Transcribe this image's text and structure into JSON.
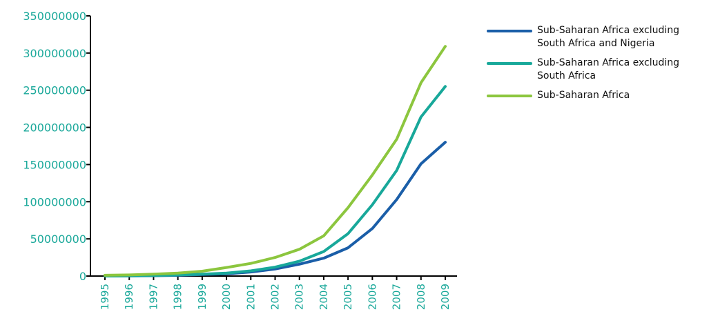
{
  "chart_data": {
    "type": "line",
    "title": "",
    "xlabel": "",
    "ylabel": "",
    "x": [
      "1995",
      "1996",
      "1997",
      "1998",
      "1999",
      "2000",
      "2001",
      "2002",
      "2003",
      "2004",
      "2005",
      "2006",
      "2007",
      "2008",
      "2009"
    ],
    "yticks": [
      "0",
      "50000000",
      "100000000",
      "150000000",
      "200000000",
      "250000000",
      "300000000",
      "350000000"
    ],
    "ylim": [
      0,
      350000000
    ],
    "grid": false,
    "legend_position": "right",
    "axis_text_color": "#1aa89a",
    "series": [
      {
        "name": "Sub-Saharan Africa excluding South Africa and Nigeria",
        "color": "#1a5ea8",
        "values": [
          0,
          200000,
          500000,
          1000000,
          2000000,
          3000000,
          5500000,
          9500000,
          16000000,
          24000000,
          38000000,
          64000000,
          103000000,
          151000000,
          180000000
        ]
      },
      {
        "name": "Sub-Saharan Africa excluding South Africa",
        "color": "#18a89a",
        "values": [
          0,
          300000,
          700000,
          1500000,
          2500000,
          4000000,
          7000000,
          12000000,
          20000000,
          33000000,
          57000000,
          96000000,
          142000000,
          214000000,
          255000000
        ]
      },
      {
        "name": "Sub-Saharan Africa",
        "color": "#8cc63e",
        "values": [
          1000000,
          1500000,
          2500000,
          4000000,
          6500000,
          11500000,
          17000000,
          25000000,
          36000000,
          54000000,
          92000000,
          136000000,
          184000000,
          260000000,
          309000000
        ]
      }
    ]
  },
  "legend": {
    "items": [
      {
        "lines": [
          "Sub-Saharan Africa excluding",
          "South Africa and Nigeria"
        ]
      },
      {
        "lines": [
          "Sub-Saharan Africa excluding",
          "South Africa"
        ]
      },
      {
        "lines": [
          "Sub-Saharan Africa"
        ]
      }
    ]
  }
}
